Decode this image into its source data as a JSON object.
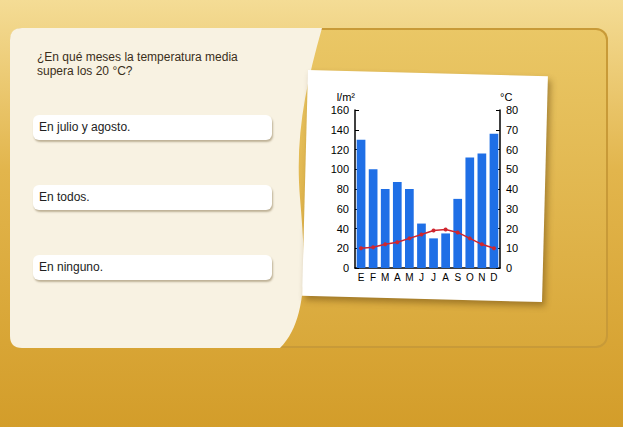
{
  "question": "¿En qué meses la temperatura media supera los 20 °C?",
  "options": [
    "En julio y agosto.",
    "En todos.",
    "En ninguno."
  ],
  "chart_data": {
    "type": "bar",
    "categories": [
      "E",
      "F",
      "M",
      "A",
      "M",
      "J",
      "J",
      "A",
      "S",
      "O",
      "N",
      "D"
    ],
    "y_label": "l/m²",
    "y2_label": "°C",
    "ylim": [
      0,
      160
    ],
    "yticks": [
      0,
      20,
      40,
      60,
      80,
      100,
      120,
      140,
      160
    ],
    "y2lim": [
      0,
      80
    ],
    "y2ticks": [
      0,
      10,
      20,
      30,
      40,
      50,
      60,
      70,
      80
    ],
    "grid": false,
    "series": [
      {
        "type": "bar",
        "color": "#1f6fe6",
        "axis": "y",
        "values": [
          130,
          100,
          80,
          87,
          80,
          45,
          30,
          35,
          70,
          112,
          116,
          136
        ]
      },
      {
        "type": "line",
        "color": "#d0262f",
        "axis": "y2",
        "marker": "circle",
        "values": [
          10,
          10.5,
          12,
          13,
          15,
          17,
          19,
          19.5,
          18,
          15,
          12,
          10
        ]
      }
    ]
  }
}
